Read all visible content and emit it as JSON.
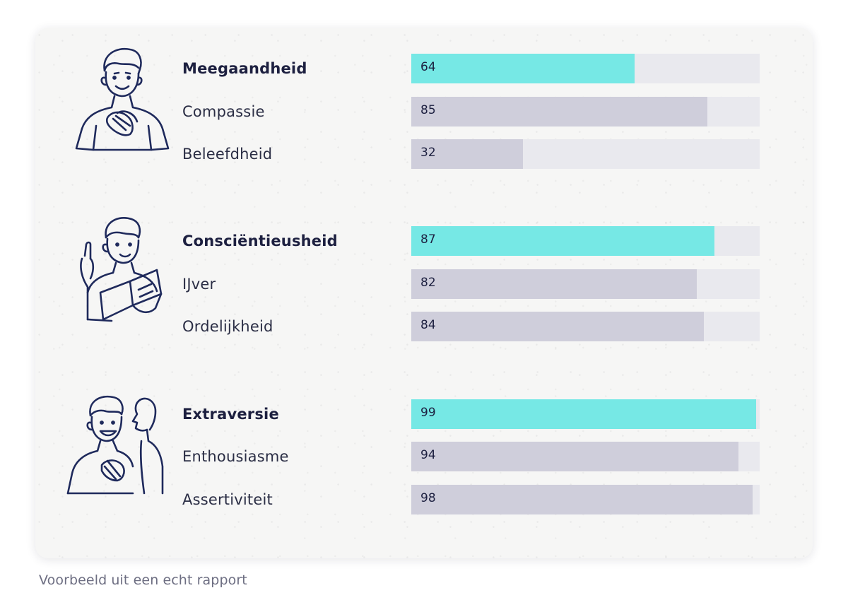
{
  "caption": "Voorbeeld uit een echt rapport",
  "colors": {
    "primary_bar": "#76e8e5",
    "secondary_bar": "#cfcedb",
    "track": "#e9e9ee",
    "text": "#1d2040",
    "line_art": "#1f2a5c"
  },
  "chart_data": {
    "type": "bar",
    "orientation": "horizontal",
    "xlim": [
      0,
      100
    ],
    "groups": [
      {
        "illustration": "person-hands-on-heart-icon",
        "items": [
          {
            "label": "Meegaandheid",
            "value": 64,
            "primary": true
          },
          {
            "label": "Compassie",
            "value": 85,
            "primary": false
          },
          {
            "label": "Beleefdheid",
            "value": 32,
            "primary": false
          }
        ]
      },
      {
        "illustration": "person-reading-book-icon",
        "items": [
          {
            "label": "Consciëntieusheid",
            "value": 87,
            "primary": true
          },
          {
            "label": "IJver",
            "value": 82,
            "primary": false
          },
          {
            "label": "Ordelijkheid",
            "value": 84,
            "primary": false
          }
        ]
      },
      {
        "illustration": "people-talking-icon",
        "items": [
          {
            "label": "Extraversie",
            "value": 99,
            "primary": true
          },
          {
            "label": "Enthousiasme",
            "value": 94,
            "primary": false
          },
          {
            "label": "Assertiviteit",
            "value": 98,
            "primary": false
          }
        ]
      }
    ]
  }
}
